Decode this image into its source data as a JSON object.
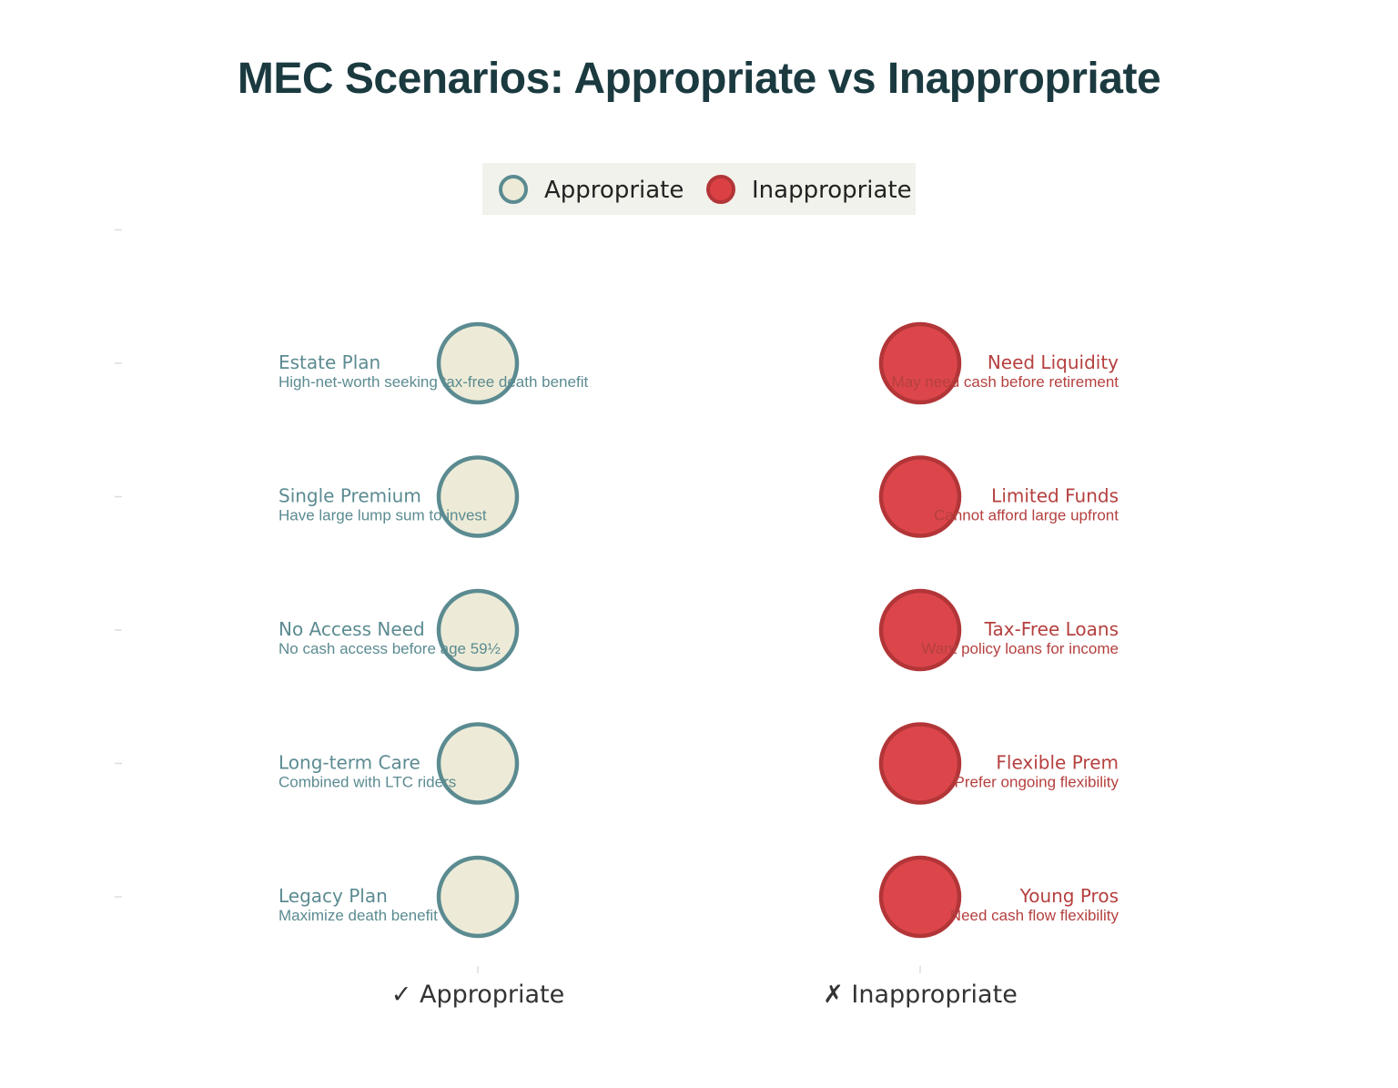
{
  "chart_data": {
    "type": "scatter",
    "title": "MEC Scenarios: Appropriate vs Inappropriate",
    "categories": [
      "✓ Appropriate",
      "✗ Inappropriate"
    ],
    "legend": {
      "placement": "top-center",
      "entries": [
        {
          "name": "Appropriate",
          "color": "#EDEBD7",
          "edge": "#5B8B91"
        },
        {
          "name": "Inappropriate",
          "color": "#DB4044",
          "edge": "#B23538"
        }
      ]
    },
    "grid": false,
    "series": [
      {
        "name": "Appropriate",
        "category": "✓ Appropriate",
        "points": [
          {
            "y": 5,
            "title": "Estate Plan",
            "desc": "High-net-worth seeking tax-free death benefit"
          },
          {
            "y": 4,
            "title": "Single Premium",
            "desc": "Have large lump sum to invest"
          },
          {
            "y": 3,
            "title": "No Access Need",
            "desc": "No cash access before age 59½"
          },
          {
            "y": 2,
            "title": "Long-term Care",
            "desc": "Combined with LTC riders"
          },
          {
            "y": 1,
            "title": "Legacy Plan",
            "desc": "Maximize death benefit"
          }
        ]
      },
      {
        "name": "Inappropriate",
        "category": "✗ Inappropriate",
        "points": [
          {
            "y": 5,
            "title": "Need Liquidity",
            "desc": "May need cash before retirement"
          },
          {
            "y": 4,
            "title": "Limited Funds",
            "desc": "Cannot afford large upfront"
          },
          {
            "y": 3,
            "title": "Tax-Free Loans",
            "desc": "Want policy loans for income"
          },
          {
            "y": 2,
            "title": "Flexible Prem",
            "desc": "Prefer ongoing flexibility"
          },
          {
            "y": 1,
            "title": "Young Pros",
            "desc": "Need cash flow flexibility"
          }
        ]
      }
    ],
    "ylim": [
      0.5,
      6
    ]
  },
  "colors": {
    "title": "#1A3A40",
    "appropriate_text": "#5B8B91",
    "appropriate_fill": "#EDEBD7",
    "appropriate_edge": "#5B8B91",
    "inappropriate_text": "#B5403F",
    "inappropriate_fill": "#DB4044",
    "inappropriate_edge": "#B23538",
    "legend_bg": "#F2F2EC",
    "axis_text": "#333333",
    "tick": "#DDDDDD"
  }
}
